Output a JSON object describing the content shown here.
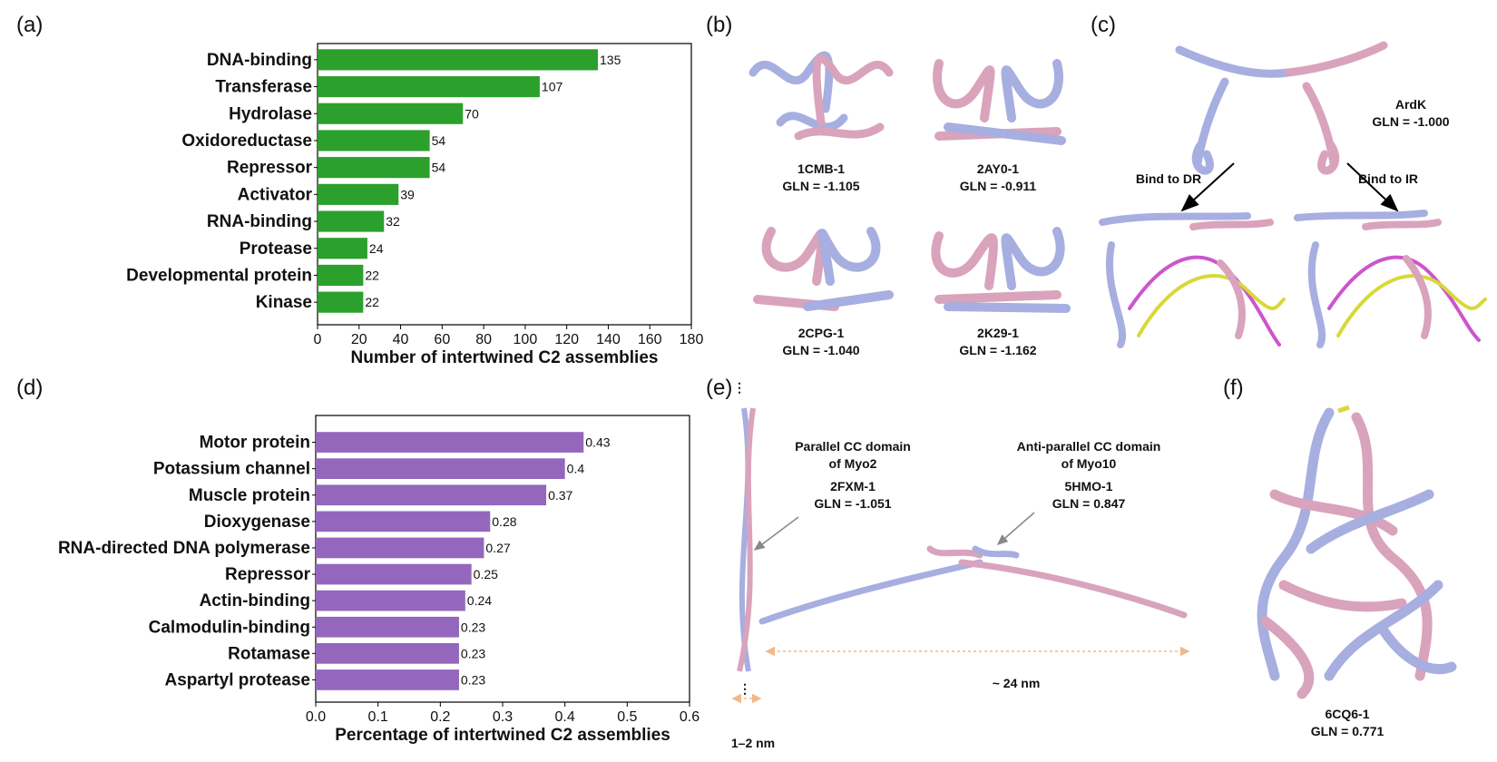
{
  "panels": {
    "a": "(a)",
    "b": "(b)",
    "c": "(c)",
    "d": "(d)",
    "e": "(e)",
    "f": "(f)"
  },
  "colors": {
    "green_bar": "#2ca02c",
    "purple_bar": "#9467bd",
    "chain_blue": "#a7aee0",
    "chain_pink": "#d9a3bc",
    "dna_magenta": "#cc55cc",
    "dna_yellow": "#d8d83a",
    "dim_orange": "#f3b78a"
  },
  "chart_data": [
    {
      "type": "bar",
      "orientation": "horizontal",
      "categories": [
        "DNA-binding",
        "Transferase",
        "Hydrolase",
        "Oxidoreductase",
        "Repressor",
        "Activator",
        "RNA-binding",
        "Protease",
        "Developmental protein",
        "Kinase"
      ],
      "values": [
        135,
        107,
        70,
        54,
        54,
        39,
        32,
        24,
        22,
        22
      ],
      "value_labels": [
        "135",
        "107",
        "70",
        "54",
        "54",
        "39",
        "32",
        "24",
        "22",
        "22"
      ],
      "xlabel": "Number of intertwined C2 assemblies",
      "xlim": [
        0,
        180
      ],
      "xticks": [
        "0",
        "20",
        "40",
        "60",
        "80",
        "100",
        "120",
        "140",
        "160",
        "180"
      ],
      "color": "#2ca02c"
    },
    {
      "type": "bar",
      "orientation": "horizontal",
      "categories": [
        "Motor protein",
        "Potassium channel",
        "Muscle protein",
        "Dioxygenase",
        "RNA-directed DNA polymerase",
        "Repressor",
        "Actin-binding",
        "Calmodulin-binding",
        "Rotamase",
        "Aspartyl protease"
      ],
      "values": [
        0.43,
        0.4,
        0.37,
        0.28,
        0.27,
        0.25,
        0.24,
        0.23,
        0.23,
        0.23
      ],
      "value_labels": [
        "0.43",
        "0.4",
        "0.37",
        "0.28",
        "0.27",
        "0.25",
        "0.24",
        "0.23",
        "0.23",
        "0.23"
      ],
      "xlabel": "Percentage of intertwined C2 assemblies",
      "xlim": [
        0,
        0.6
      ],
      "xticks": [
        "0.0",
        "0.1",
        "0.2",
        "0.3",
        "0.4",
        "0.5",
        "0.6"
      ],
      "color": "#9467bd"
    }
  ],
  "panel_b": {
    "s1": {
      "id": "1CMB-1",
      "gln": "GLN = -1.105"
    },
    "s2": {
      "id": "2AY0-1",
      "gln": "GLN = -0.911"
    },
    "s3": {
      "id": "2CPG-1",
      "gln": "GLN = -1.040"
    },
    "s4": {
      "id": "2K29-1",
      "gln": "GLN = -1.162"
    }
  },
  "panel_c": {
    "name": "ArdK",
    "gln": "GLN = -1.000",
    "arrow_left": "Bind to DR",
    "arrow_right": "Bind to IR"
  },
  "panel_e": {
    "left_title1": "Parallel CC domain",
    "left_title2": "of Myo2",
    "left_id": "2FXM-1",
    "left_gln": "GLN = -1.051",
    "right_title1": "Anti-parallel CC domain",
    "right_title2": "of Myo10",
    "right_id": "5HMO-1",
    "right_gln": "GLN = 0.847",
    "length": "~ 24 nm",
    "width": "1–2 nm",
    "dots": "⋮"
  },
  "panel_f": {
    "id": "6CQ6-1",
    "gln": "GLN = 0.771"
  }
}
